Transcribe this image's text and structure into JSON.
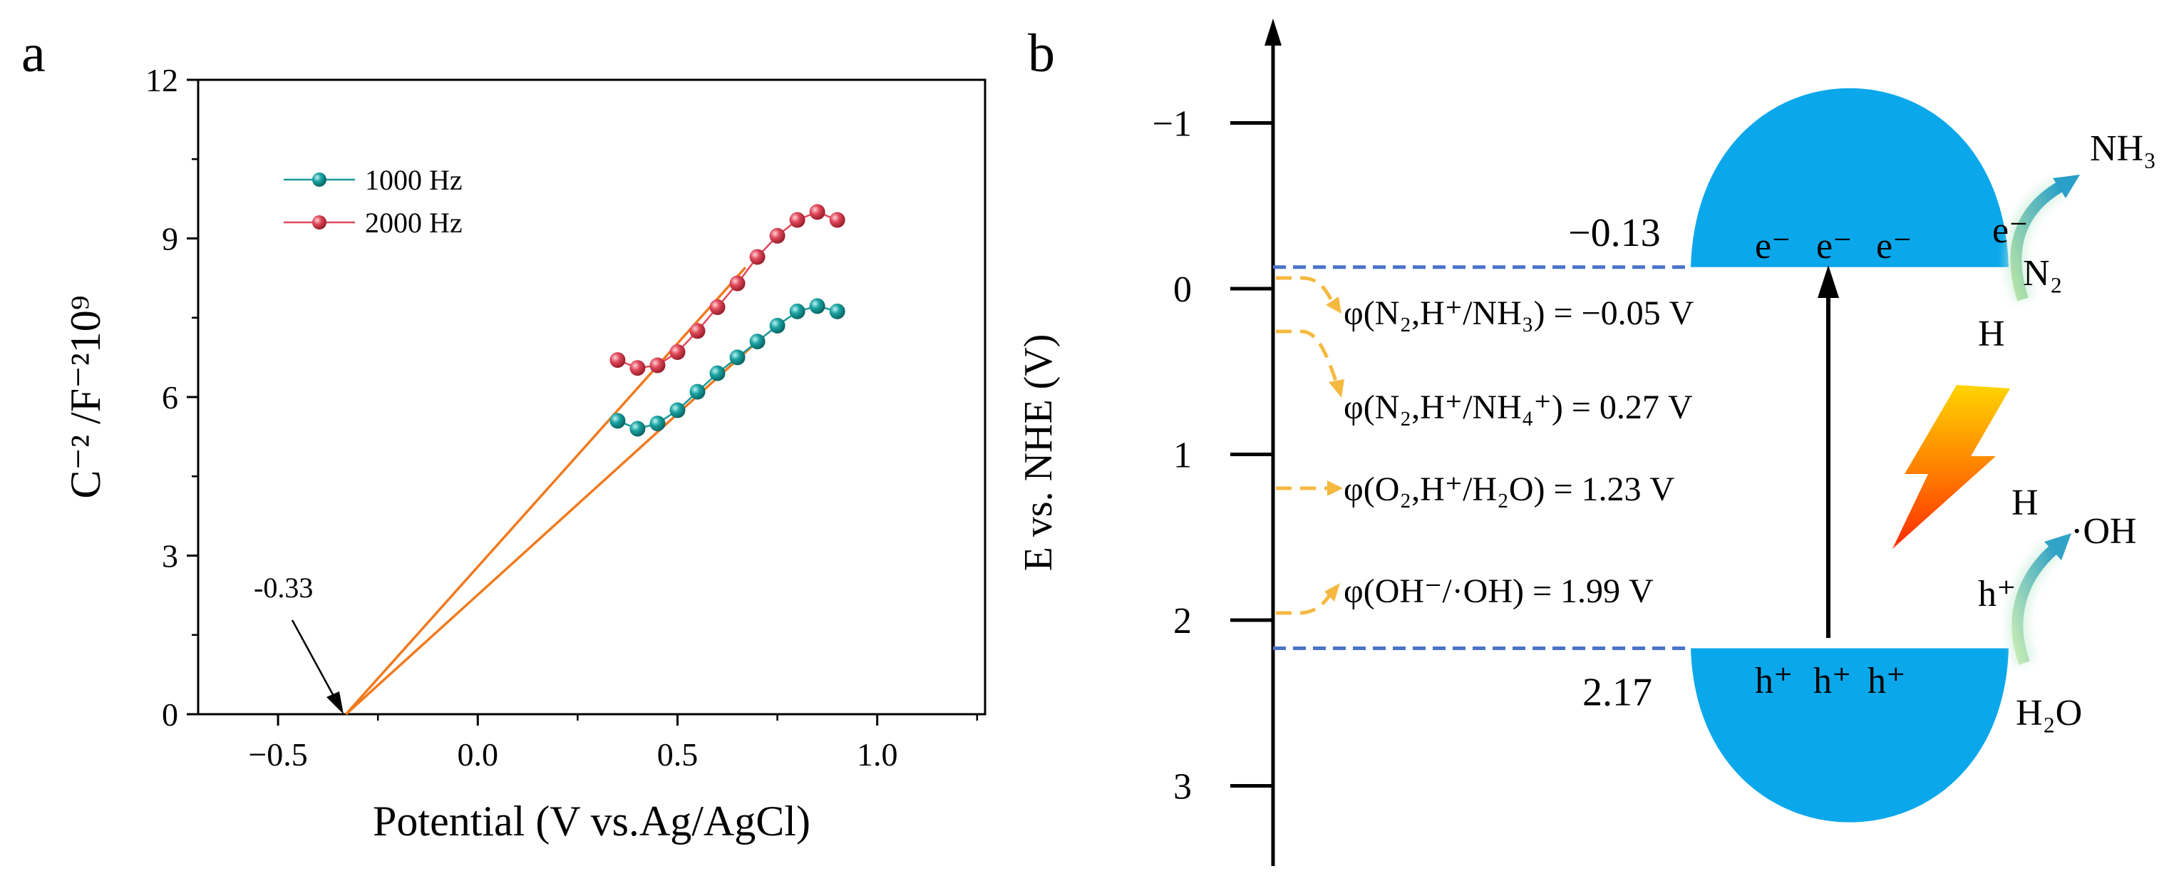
{
  "panel_labels": {
    "a": "a",
    "b": "b"
  },
  "chart_data": [
    {
      "type": "scatter",
      "title": "",
      "xlabel": "Potential (V vs.Ag/AgCl)",
      "ylabel": "C⁻² /F⁻²10⁹",
      "xlim": [
        -0.7,
        1.27
      ],
      "ylim": [
        0,
        12
      ],
      "xticks": [
        -0.5,
        0.0,
        0.5,
        1.0
      ],
      "xtick_labels": [
        "−0.5",
        "0.0",
        "0.5",
        "1.0"
      ],
      "yticks": [
        0,
        3,
        6,
        9,
        12
      ],
      "ytick_labels": [
        "0",
        "3",
        "6",
        "9",
        "12"
      ],
      "grid": false,
      "legend_position": "top-left",
      "series": [
        {
          "name": "1000 Hz",
          "color": "#1a9a9a",
          "x": [
            0.35,
            0.4,
            0.45,
            0.5,
            0.55,
            0.6,
            0.65,
            0.7,
            0.75,
            0.8,
            0.85,
            0.9
          ],
          "y": [
            5.55,
            5.4,
            5.5,
            5.75,
            6.1,
            6.45,
            6.75,
            7.05,
            7.35,
            7.62,
            7.72,
            7.62
          ]
        },
        {
          "name": "2000 Hz",
          "color": "#e0485a",
          "x": [
            0.35,
            0.4,
            0.45,
            0.5,
            0.55,
            0.6,
            0.65,
            0.7,
            0.75,
            0.8,
            0.85,
            0.9
          ],
          "y": [
            6.7,
            6.55,
            6.6,
            6.85,
            7.25,
            7.7,
            8.15,
            8.65,
            9.05,
            9.35,
            9.5,
            9.35
          ]
        }
      ],
      "fit_lines": [
        {
          "color": "#f07a1e",
          "x": [
            -0.33,
            0.7
          ],
          "y": [
            0,
            7.05
          ]
        },
        {
          "color": "#f07a1e",
          "x": [
            -0.33,
            0.67
          ],
          "y": [
            0,
            8.45
          ]
        }
      ],
      "annotation": {
        "text": "-0.33",
        "x": -0.33,
        "y": 0
      }
    },
    {
      "type": "diagram",
      "ylabel": "E vs. NHE (V)",
      "ylim": [
        -1.6,
        3.4
      ],
      "yticks": [
        -1,
        0,
        1,
        2,
        3
      ],
      "ytick_labels": [
        "−1",
        "0",
        "1",
        "2",
        "3"
      ],
      "cb_level": -0.13,
      "vb_level": 2.17,
      "cb_label": "−0.13",
      "vb_label": "2.17",
      "band_color": "#0aa7eb",
      "dashed_color": "#4a73c9",
      "arrow_color": "#f5b940",
      "electrons": [
        "e⁻",
        "e⁻",
        "e⁻"
      ],
      "holes": [
        "h⁺",
        "h⁺",
        "h⁺"
      ],
      "potentials": [
        {
          "label": "φ(N₂,H⁺/NH₃) = −0.05 V",
          "level": -0.05
        },
        {
          "label": "φ(N₂,H⁺/NH₄⁺) = 0.27 V",
          "level": 0.27
        },
        {
          "label": "φ(O₂,H⁺/H₂O) = 1.23 V",
          "level": 1.23
        },
        {
          "label": "φ(OH⁻/·OH) = 1.99 V",
          "level": 1.99
        }
      ],
      "reduction_side": {
        "product": "NH₃",
        "electron": "e⁻",
        "reactant": "N₂",
        "proton": "H"
      },
      "oxidation_side": {
        "product_h": "H",
        "product": "·OH",
        "hole": "h⁺",
        "reactant": "H₂O"
      }
    }
  ]
}
